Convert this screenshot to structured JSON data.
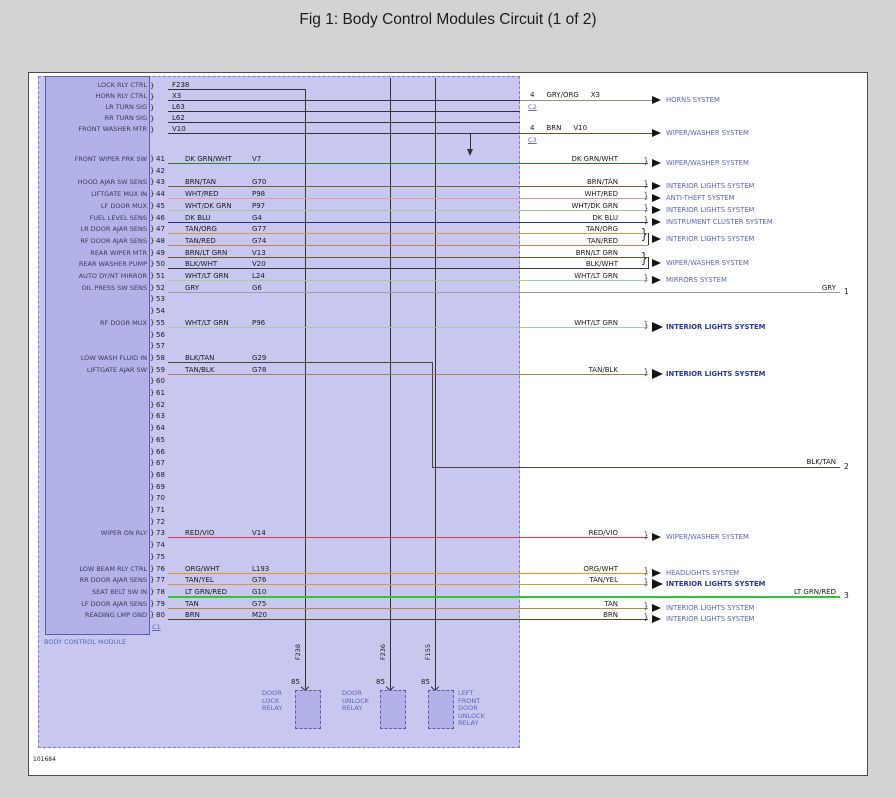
{
  "title": "Fig 1: Body Control Modules Circuit (1 of 2)",
  "diagram_number": "101684",
  "module": {
    "name": "BODY CONTROL MODULE",
    "connector_bottom": "C1"
  },
  "colors": {
    "page_bg": "#d3d3d3",
    "canvas_bg": "#ffffff",
    "module_fill": "#c7c7f0",
    "module_border": "#7b7bd0",
    "pinbox_fill": "#b2b2e8",
    "pinbox_border": "#5c5cb0",
    "system_text": "#5a66b8",
    "system_text_bold": "#2734a4",
    "wire_default": "#333333"
  },
  "top_pins": [
    {
      "label": "LOCK RLY CTRL",
      "code": "F238"
    },
    {
      "label": "HORN RLY CTRL",
      "code": "X3"
    },
    {
      "label": "LR TURN SIG",
      "code": "L63"
    },
    {
      "label": "RR TURN SIG",
      "code": "L62"
    },
    {
      "label": "FRONT WASHER MTR",
      "code": "V10"
    }
  ],
  "top_outputs": [
    {
      "pin": "4",
      "wire": "GRY/ORG",
      "code": "X3",
      "connector": "C2",
      "system": "HORNS SYSTEM",
      "color": "#97917f"
    },
    {
      "pin": "4",
      "wire": "BRN",
      "code": "V10",
      "connector": "C3",
      "system": "WIPER/WASHER SYSTEM",
      "color": "#6b5626"
    }
  ],
  "rows": [
    {
      "n": "41",
      "label": "FRONT WIPER PRK SW",
      "wire": "DK GRN/WHT",
      "code": "V7",
      "right": "DK GRN/WHT",
      "system": "WIPER/WASHER SYSTEM",
      "color": "#2e7d32",
      "route": "arrow"
    },
    {
      "n": "42"
    },
    {
      "n": "43",
      "label": "HOOD AJAR SW SENS",
      "wire": "BRN/TAN",
      "code": "G70",
      "right": "BRN/TAN",
      "system": "INTERIOR LIGHTS SYSTEM",
      "color": "#7d5c34",
      "route": "arrow"
    },
    {
      "n": "44",
      "label": "LIFTGATE MUX IN",
      "wire": "WHT/RED",
      "code": "P98",
      "right": "WHT/RED",
      "system": "ANTI-THEFT SYSTEM",
      "color": "#e89aa4",
      "route": "arrow"
    },
    {
      "n": "45",
      "label": "LF DOOR MUX",
      "wire": "WHT/DK GRN",
      "code": "P97",
      "right": "WHT/DK GRN",
      "system": "INTERIOR LIGHTS SYSTEM",
      "color": "#a6c9a0",
      "route": "arrow"
    },
    {
      "n": "46",
      "label": "FUEL LEVEL SENS",
      "wire": "DK BLU",
      "code": "G4",
      "right": "DK BLU",
      "system": "INSTRUMENT CLUSTER SYSTEM",
      "color": "#27318f",
      "route": "arrow"
    },
    {
      "n": "47",
      "label": "LR DOOR AJAR SENS",
      "wire": "TAN/ORG",
      "code": "G77",
      "right": "TAN/ORG",
      "system": "INTERIOR LIGHTS SYSTEM",
      "color": "#d09a56",
      "route": "lead"
    },
    {
      "n": "48",
      "label": "RF DOOR AJAR SENS",
      "wire": "TAN/RED",
      "code": "G74",
      "right": "TAN/RED",
      "color": "#c2825e",
      "route": "tail"
    },
    {
      "n": "49",
      "label": "REAR WIPER MTR",
      "wire": "BRN/LT GRN",
      "code": "V13",
      "right": "BRN/LT GRN",
      "system": "WIPER/WASHER SYSTEM",
      "color": "#6e5a2a",
      "route": "lead"
    },
    {
      "n": "50",
      "label": "REAR WASHER PUMP",
      "wire": "BLK/WHT",
      "code": "V20",
      "right": "BLK/WHT",
      "color": "#3a3a3a",
      "route": "tail"
    },
    {
      "n": "51",
      "label": "AUTO DY/NT MIRROR",
      "wire": "WHT/LT GRN",
      "code": "L24",
      "right": "WHT/LT GRN",
      "system": "MIRRORS SYSTEM",
      "color": "#9ad49a",
      "route": "arrow"
    },
    {
      "n": "52",
      "label": "OIL PRESS SW SENS",
      "wire": "GRY",
      "code": "G6",
      "right": "GRY",
      "color": "#9c9c9c",
      "route": "edge",
      "ref": "1"
    },
    {
      "n": "53"
    },
    {
      "n": "54"
    },
    {
      "n": "55",
      "label": "RF DOOR MUX",
      "wire": "WHT/LT GRN",
      "code": "P96",
      "right": "WHT/LT GRN",
      "system": "INTERIOR LIGHTS SYSTEM",
      "color": "#9ad49a",
      "route": "arrow",
      "bold": true
    },
    {
      "n": "56"
    },
    {
      "n": "57"
    },
    {
      "n": "58",
      "label": "LOW WASH FLUID IN",
      "wire": "BLK/TAN",
      "code": "G29",
      "right": "BLK/TAN",
      "color": "#4c4536",
      "route": "drop_edge",
      "ref": "2"
    },
    {
      "n": "59",
      "label": "LIFTGATE AJAR SW",
      "wire": "TAN/BLK",
      "code": "G78",
      "right": "TAN/BLK",
      "system": "INTERIOR LIGHTS SYSTEM",
      "color": "#a5854f",
      "route": "arrow",
      "bold": true
    },
    {
      "n": "60"
    },
    {
      "n": "61"
    },
    {
      "n": "62"
    },
    {
      "n": "63"
    },
    {
      "n": "64"
    },
    {
      "n": "65"
    },
    {
      "n": "66"
    },
    {
      "n": "67"
    },
    {
      "n": "68"
    },
    {
      "n": "69"
    },
    {
      "n": "70"
    },
    {
      "n": "71"
    },
    {
      "n": "72"
    },
    {
      "n": "73",
      "label": "WIPER ON RLY",
      "wire": "RED/VIO",
      "code": "V14",
      "right": "RED/VIO",
      "system": "WIPER/WASHER SYSTEM",
      "color": "#e23a5a",
      "route": "arrow"
    },
    {
      "n": "74"
    },
    {
      "n": "75"
    },
    {
      "n": "76",
      "label": "LOW BEAM RLY CTRL",
      "wire": "ORG/WHT",
      "code": "L193",
      "right": "ORG/WHT",
      "system": "HEADLIGHTS SYSTEM",
      "color": "#e6941e",
      "route": "arrow"
    },
    {
      "n": "77",
      "label": "RR DOOR AJAR SENS",
      "wire": "TAN/YEL",
      "code": "G76",
      "right": "TAN/YEL",
      "system": "INTERIOR LIGHTS SYSTEM",
      "color": "#c7a23e",
      "route": "arrow",
      "bold": true
    },
    {
      "n": "78",
      "label": "SEAT BELT SW IN",
      "wire": "LT GRN/RED",
      "code": "G10",
      "right": "LT GRN/RED",
      "color": "#35c435",
      "route": "edge",
      "ref": "3",
      "bold": true
    },
    {
      "n": "79",
      "label": "LF DOOR AJAR SENS",
      "wire": "TAN",
      "code": "G75",
      "right": "TAN",
      "system": "INTERIOR LIGHTS SYSTEM",
      "color": "#b08a4a",
      "route": "arrow"
    },
    {
      "n": "80",
      "label": "READING LMP GND",
      "wire": "BRN",
      "code": "M20",
      "right": "BRN",
      "system": "INTERIOR LIGHTS SYSTEM",
      "color": "#5f4316",
      "route": "arrow"
    }
  ],
  "relays": [
    {
      "code": "F238",
      "pin": "85",
      "label": "DOOR\nLOCK\nRELAY"
    },
    {
      "code": "F236",
      "pin": "85",
      "label": "DOOR\nUNLOCK\nRELAY"
    },
    {
      "code": "F155",
      "pin": "85",
      "label": "LEFT\nFRONT\nDOOR\nUNLOCK\nRELAY"
    }
  ]
}
